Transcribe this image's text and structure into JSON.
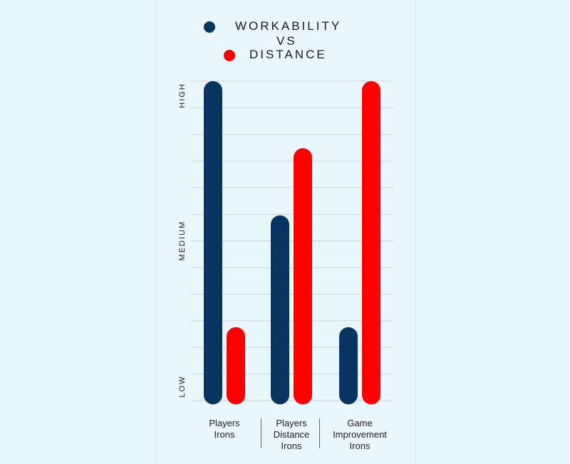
{
  "legend": {
    "series1": "WORKABILITY",
    "vs": "VS",
    "series2": "DISTANCE"
  },
  "colors": {
    "workability": "#06365f",
    "distance": "#ff0000",
    "grid": "#c9d4da"
  },
  "chart_data": {
    "type": "bar",
    "title": "WORKABILITY VS DISTANCE",
    "categories": [
      "Players\nIrons",
      "Players\nDistance\nIrons",
      "Game\nImprovement\nIrons"
    ],
    "series": [
      {
        "name": "WORKABILITY",
        "values": [
          100,
          58,
          23
        ]
      },
      {
        "name": "DISTANCE",
        "values": [
          23,
          79,
          100
        ]
      }
    ],
    "y_tick_labels": [
      "LOW",
      "MEDIUM",
      "HIGH"
    ],
    "ylim": [
      0,
      100
    ],
    "grid": true
  }
}
